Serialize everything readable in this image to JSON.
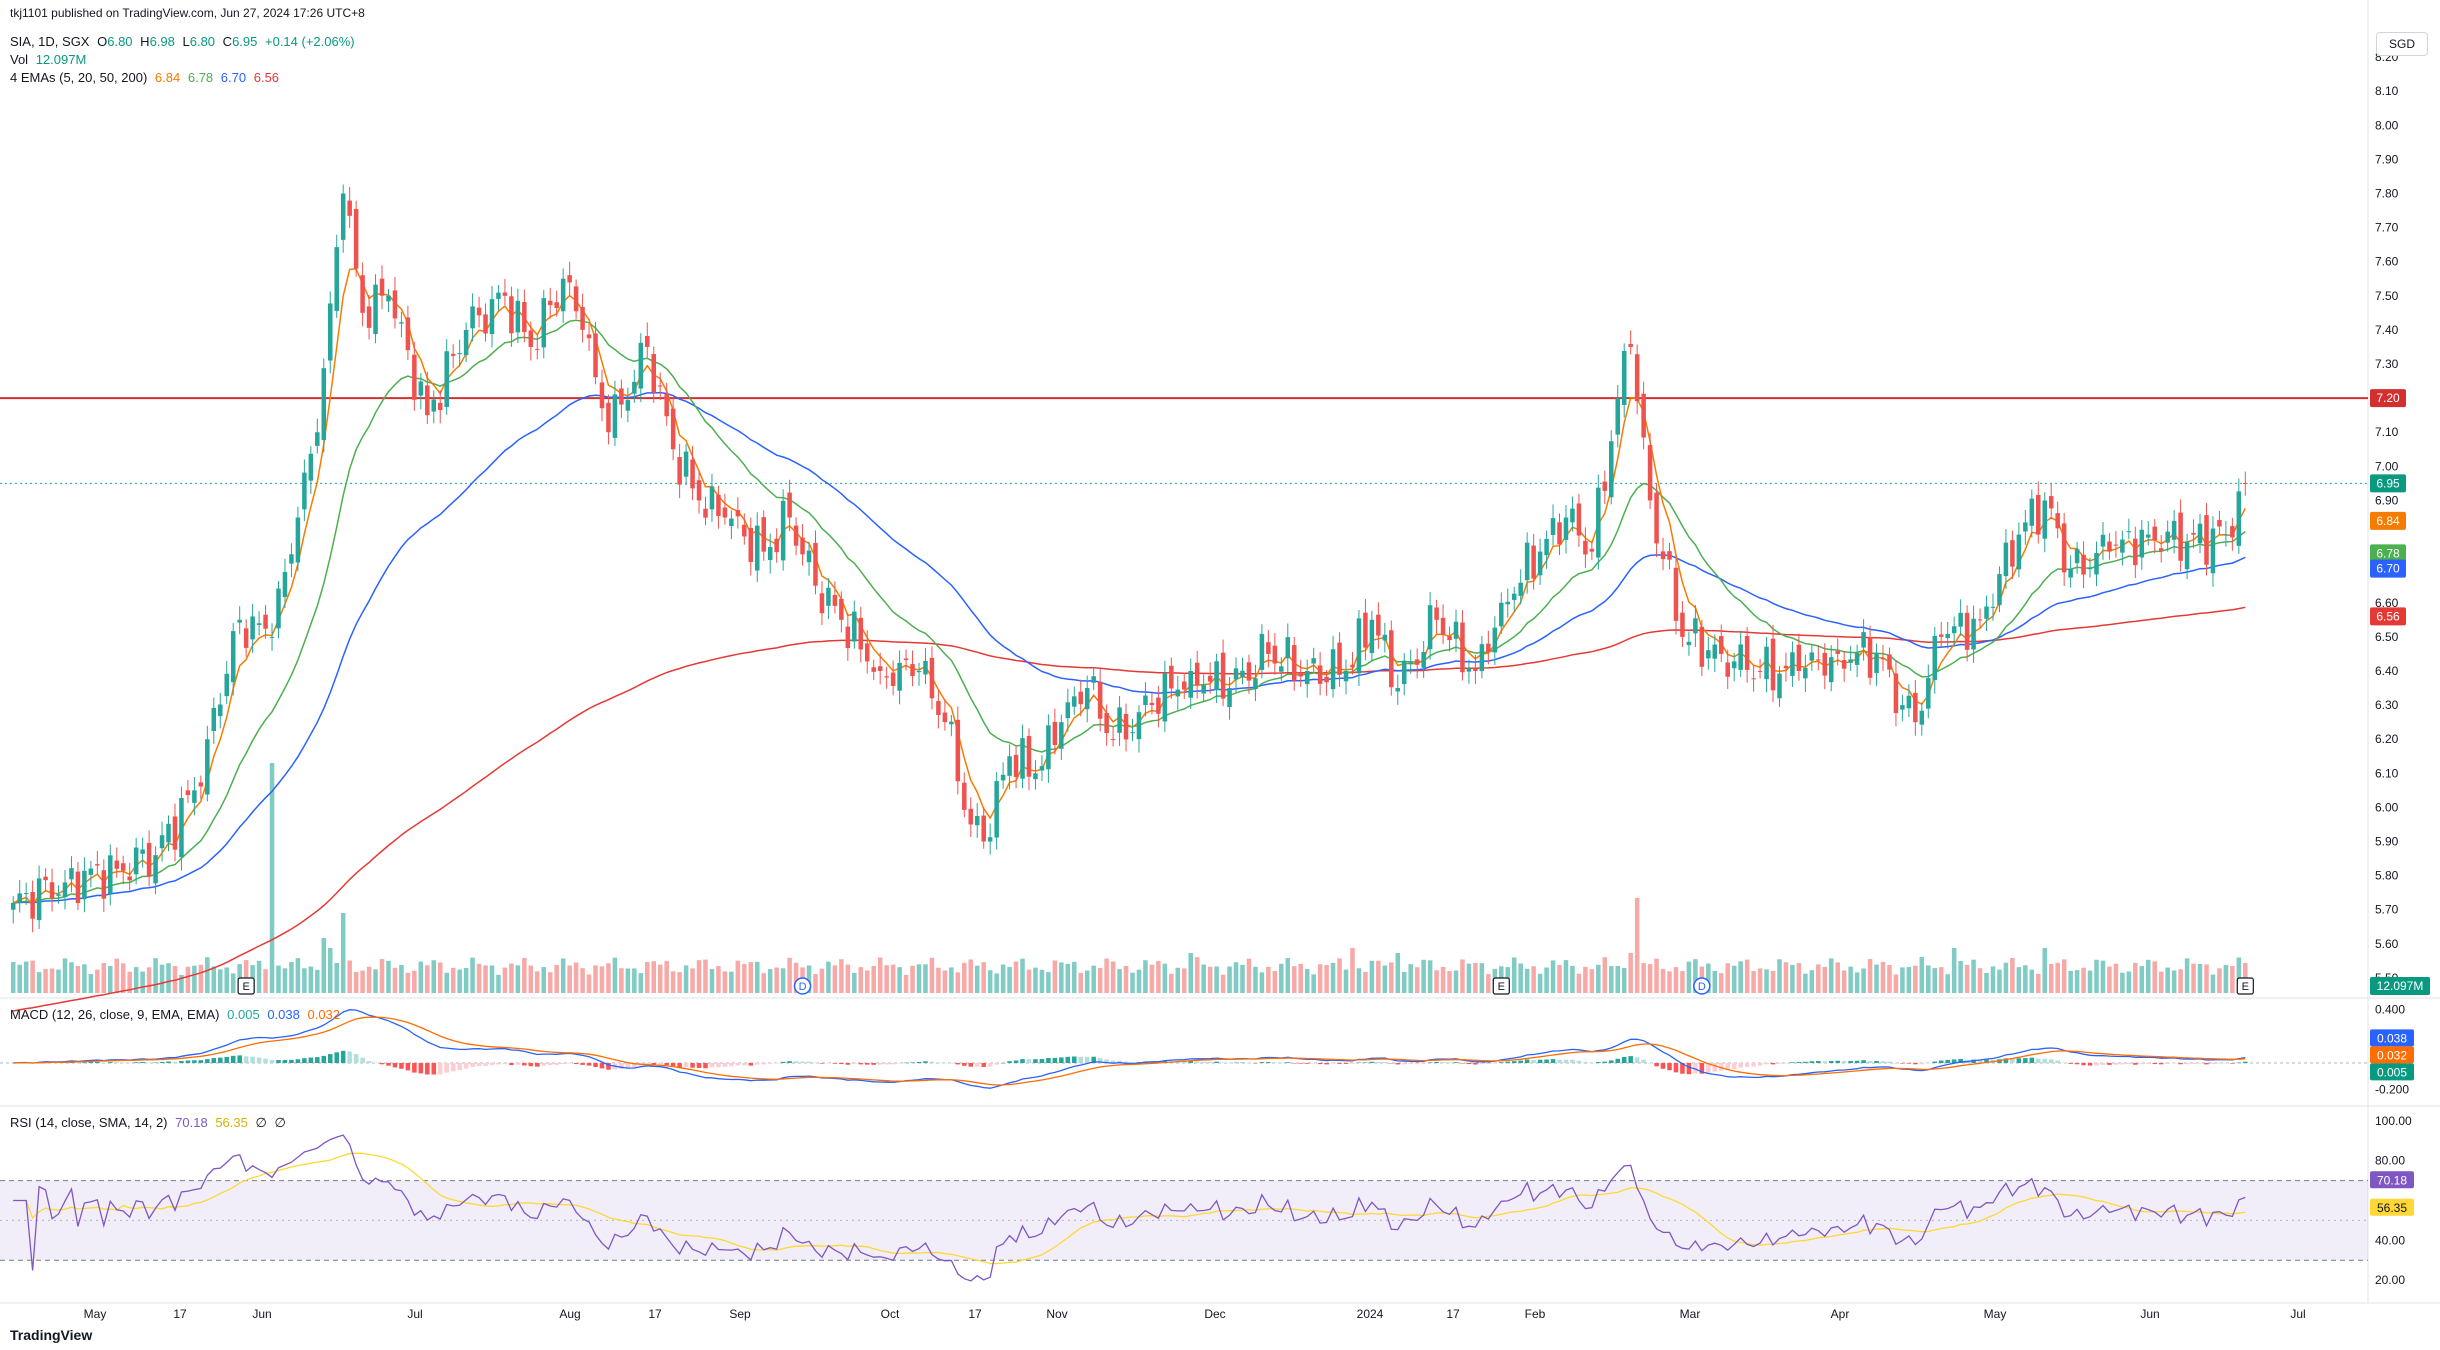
{
  "header": {
    "published": "tkj1101 published on TradingView.com, Jun 27, 2024 17:26 UTC+8",
    "symbol": "SIA, 1D, SGX",
    "ohlc": {
      "o_label": "O",
      "o": "6.80",
      "h_label": "H",
      "h": "6.98",
      "l_label": "L",
      "l": "6.80",
      "c_label": "C",
      "c": "6.95",
      "change": "+0.14 (+2.06%)"
    },
    "vol_label": "Vol",
    "vol_value": "12.097M",
    "ema_label": "4 EMAs (5, 20, 50, 200)",
    "ema_values": [
      "6.84",
      "6.78",
      "6.70",
      "6.56"
    ]
  },
  "currency": "SGD",
  "brand": "TradingView",
  "colors": {
    "up": "#26a69a",
    "down": "#ef5350",
    "vol_up": "#80cbc4",
    "vol_down": "#f7a9a7",
    "ema5": "#f57c00",
    "ema20": "#4caf50",
    "ema50": "#2962ff",
    "ema200": "#e53935",
    "resistance": "#d32f2f",
    "macd": "#2962ff",
    "signal": "#ff6d00",
    "rsi": "#7e57c2",
    "rsi_ma": "#fdd835"
  },
  "chart_data": [
    {
      "type": "candlestick",
      "price_axis": {
        "min": 5.45,
        "max": 8.25,
        "ticks": [
          "8.20",
          "8.10",
          "8.00",
          "7.90",
          "7.80",
          "7.70",
          "7.60",
          "7.50",
          "7.40",
          "7.30",
          "7.10",
          "7.00",
          "6.90",
          "6.70",
          "6.60",
          "6.50",
          "6.40",
          "6.30",
          "6.20",
          "6.10",
          "6.00",
          "5.90",
          "5.80",
          "5.70",
          "5.60",
          "5.50"
        ]
      },
      "x_axis_labels": [
        "May",
        "17",
        "Jun",
        "Jul",
        "Aug",
        "17",
        "Sep",
        "Oct",
        "17",
        "Nov",
        "Dec",
        "2024",
        "17",
        "Feb",
        "Mar",
        "Apr",
        "May",
        "Jun",
        "Jul"
      ],
      "horizontal_line": {
        "value": 7.2,
        "label": "7.20"
      },
      "last_price": {
        "value": 6.95,
        "label": "6.95"
      },
      "ema_labels": [
        {
          "value": 6.84,
          "label": "6.84"
        },
        {
          "value": 6.78,
          "label": "6.78"
        },
        {
          "value": 6.7,
          "label": "6.70"
        },
        {
          "value": 6.56,
          "label": "6.56"
        }
      ],
      "volume_label": "12.097M",
      "event_markers": [
        "E",
        "D",
        "E",
        "D",
        "E"
      ],
      "close_anchors": [
        [
          0,
          5.72
        ],
        [
          8,
          5.78
        ],
        [
          16,
          5.82
        ],
        [
          22,
          5.86
        ],
        [
          28,
          6.05
        ],
        [
          30,
          6.2
        ],
        [
          35,
          6.55
        ],
        [
          40,
          6.5
        ],
        [
          44,
          6.85
        ],
        [
          47,
          7.1
        ],
        [
          51,
          7.8
        ],
        [
          54,
          7.45
        ],
        [
          58,
          7.5
        ],
        [
          64,
          7.15
        ],
        [
          70,
          7.4
        ],
        [
          76,
          7.5
        ],
        [
          80,
          7.35
        ],
        [
          85,
          7.55
        ],
        [
          88,
          7.4
        ],
        [
          92,
          7.1
        ],
        [
          98,
          7.35
        ],
        [
          102,
          7.05
        ],
        [
          106,
          6.9
        ],
        [
          110,
          6.85
        ],
        [
          116,
          6.75
        ],
        [
          120,
          6.85
        ],
        [
          124,
          6.65
        ],
        [
          128,
          6.55
        ],
        [
          134,
          6.4
        ],
        [
          140,
          6.4
        ],
        [
          144,
          6.25
        ],
        [
          148,
          5.95
        ],
        [
          150,
          5.9
        ],
        [
          154,
          6.15
        ],
        [
          158,
          6.1
        ],
        [
          162,
          6.25
        ],
        [
          166,
          6.35
        ],
        [
          170,
          6.2
        ],
        [
          176,
          6.3
        ],
        [
          182,
          6.4
        ],
        [
          188,
          6.35
        ],
        [
          194,
          6.45
        ],
        [
          200,
          6.4
        ],
        [
          206,
          6.4
        ],
        [
          210,
          6.55
        ],
        [
          214,
          6.35
        ],
        [
          220,
          6.55
        ],
        [
          226,
          6.4
        ],
        [
          230,
          6.6
        ],
        [
          236,
          6.75
        ],
        [
          240,
          6.85
        ],
        [
          244,
          6.75
        ],
        [
          248,
          7.2
        ],
        [
          250,
          7.35
        ],
        [
          253,
          6.9
        ],
        [
          258,
          6.5
        ],
        [
          264,
          6.45
        ],
        [
          270,
          6.4
        ],
        [
          276,
          6.4
        ],
        [
          282,
          6.45
        ],
        [
          288,
          6.45
        ],
        [
          292,
          6.3
        ],
        [
          294,
          6.25
        ],
        [
          298,
          6.5
        ],
        [
          304,
          6.55
        ],
        [
          310,
          6.8
        ],
        [
          314,
          6.9
        ],
        [
          318,
          6.7
        ],
        [
          324,
          6.75
        ],
        [
          330,
          6.8
        ],
        [
          336,
          6.78
        ],
        [
          342,
          6.8
        ],
        [
          345,
          6.95
        ]
      ]
    },
    {
      "type": "line",
      "title": "MACD (12, 26, close, 9, EMA, EMA)",
      "values_text": [
        "0.005",
        "0.038",
        "0.032"
      ],
      "axis": {
        "ticks": [
          "0.400",
          "0.200",
          "0.000",
          "-0.200"
        ]
      },
      "labels": [
        {
          "value": 0.038,
          "label": "0.038"
        },
        {
          "value": 0.032,
          "label": "0.032"
        },
        {
          "value": 0.005,
          "label": "0.005"
        }
      ]
    },
    {
      "type": "line",
      "title": "RSI (14, close, SMA, 14, 2)",
      "values_text": [
        "70.18",
        "56.35",
        "∅",
        "∅"
      ],
      "axis": {
        "ticks": [
          "100.00",
          "80.00",
          "40.00",
          "20.00"
        ]
      },
      "bands": [
        70,
        30
      ],
      "labels": [
        {
          "value": 70.18,
          "label": "70.18"
        },
        {
          "value": 56.35,
          "label": "56.35"
        }
      ]
    }
  ]
}
